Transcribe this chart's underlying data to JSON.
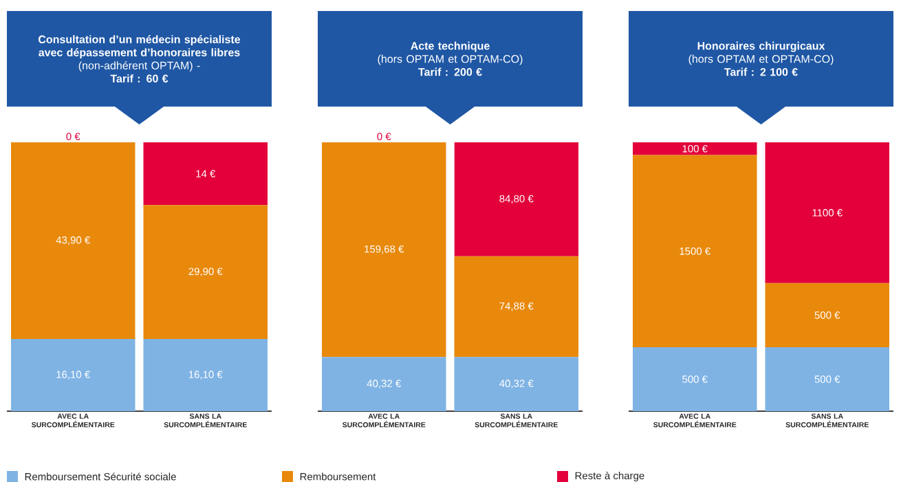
{
  "chart_data": [
    {
      "type": "bar",
      "stacked": true,
      "title": "Consultation d’un médecin spécialiste avec dépassement d’honoraires libres",
      "subtitle": "(non-adhérent OPTAM) -",
      "annotations": [
        "Tarif : 60 €"
      ],
      "categories": [
        "AVEC LA SURCOMPLÉMENTAIRE",
        "SANS LA SURCOMPLÉMENTAIRE"
      ],
      "ylim": [
        0,
        60
      ],
      "legend": "bottom",
      "series": [
        {
          "name": "Remboursement Sécurité sociale",
          "color": "#7fb3e4",
          "values": [
            16.1,
            16.1
          ],
          "value_labels": [
            "16,10 €",
            "16,10 €"
          ]
        },
        {
          "name": "Remboursement",
          "color": "#e8890c",
          "values": [
            43.9,
            29.9
          ],
          "value_labels": [
            "43,90 €",
            "29,90 €"
          ]
        },
        {
          "name": "Reste à charge",
          "color": "#e3003b",
          "values": [
            0,
            14
          ],
          "value_labels": [
            "0 €",
            "14 €"
          ]
        }
      ]
    },
    {
      "type": "bar",
      "stacked": true,
      "title": "Acte technique",
      "subtitle": "(hors OPTAM et OPTAM-CO)",
      "annotations": [
        "Tarif : 200 €"
      ],
      "categories": [
        "AVEC LA SURCOMPLÉMENTAIRE",
        "SANS LA SURCOMPLÉMENTAIRE"
      ],
      "ylim": [
        0,
        200
      ],
      "series": [
        {
          "color": "#7fb3e4",
          "values": [
            40.32,
            40.32
          ],
          "value_labels": [
            "40,32 €",
            "40,32 €"
          ]
        },
        {
          "color": "#e8890c",
          "values": [
            159.68,
            74.88
          ],
          "value_labels": [
            "159,68 €",
            "74,88 €"
          ]
        },
        {
          "color": "#e3003b",
          "values": [
            0,
            84.8
          ],
          "value_labels": [
            "0 €",
            "84,80 €"
          ]
        }
      ]
    },
    {
      "type": "bar",
      "stacked": true,
      "title": "Honoraires chirurgicaux",
      "subtitle": "(hors OPTAM et OPTAM-CO)",
      "annotations": [
        "Tarif : 2 100 €"
      ],
      "categories": [
        "AVEC LA SURCOMPLÉMENTAIRE",
        "SANS LA SURCOMPLÉMENTAIRE"
      ],
      "ylim": [
        0,
        2100
      ],
      "series": [
        {
          "color": "#7fb3e4",
          "values": [
            500,
            500
          ],
          "value_labels": [
            "500 €",
            "500 €"
          ]
        },
        {
          "color": "#e8890c",
          "values": [
            1500,
            500
          ],
          "value_labels": [
            "1500 €",
            "500 €"
          ]
        },
        {
          "color": "#e3003b",
          "values": [
            100,
            1100
          ],
          "value_labels": [
            "100 €",
            "1100 €"
          ]
        }
      ]
    }
  ]
}
